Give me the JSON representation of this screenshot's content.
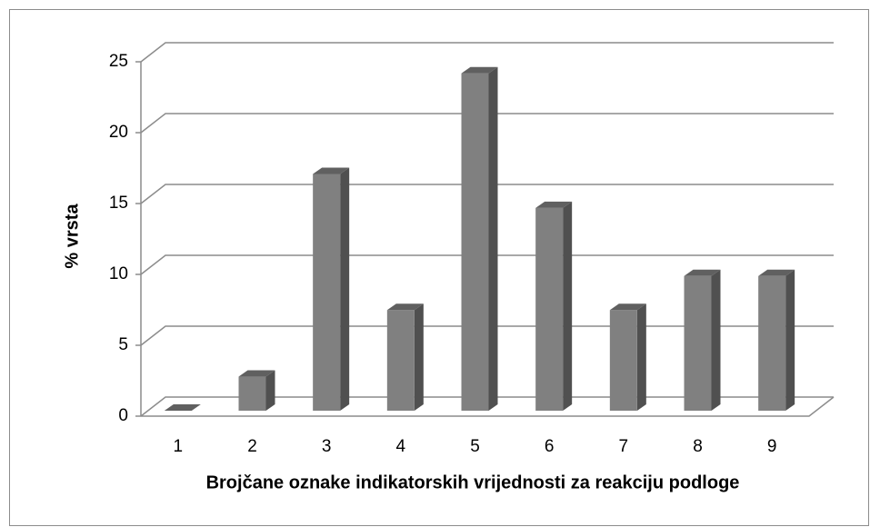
{
  "chart_data": {
    "type": "bar3d",
    "x_label": "Brojčane oznake indikatorskih vrijednosti za reakciju podloge",
    "y_label": "% vrsta",
    "categories": [
      "1",
      "2",
      "3",
      "4",
      "5",
      "6",
      "7",
      "8",
      "9"
    ],
    "values": [
      0,
      2.4,
      16.7,
      7.1,
      23.8,
      14.3,
      7.1,
      9.5,
      9.5
    ],
    "color": "#808080",
    "ylim": [
      0,
      25
    ],
    "yticks": [
      0,
      5,
      10,
      15,
      20,
      25
    ],
    "grid": true
  }
}
